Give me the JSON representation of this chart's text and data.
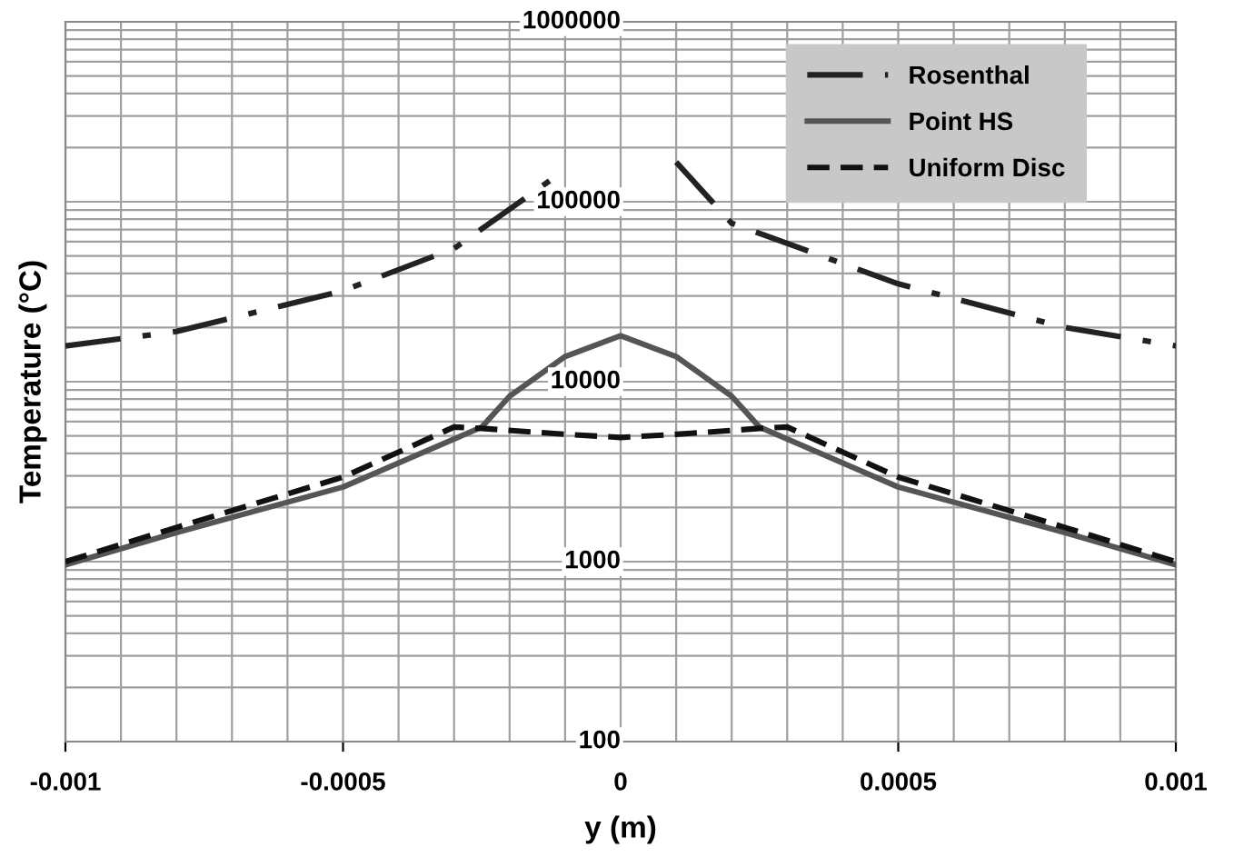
{
  "chart_data": {
    "type": "line",
    "xlabel": "y (m)",
    "ylabel": "Temperature (°C)",
    "log": "y",
    "grid": true,
    "legend": "top right",
    "marker": "none",
    "xlim": [
      -0.001,
      0.001
    ],
    "xticks": [
      -0.001,
      -0.0005,
      0,
      0.0005,
      0.001
    ],
    "ylim": [
      100,
      1000000
    ],
    "yticks": [
      100,
      1000,
      10000,
      100000,
      1000000
    ],
    "series": [
      {
        "name": "Rosenthal",
        "color": "#222222",
        "line_style": "dashdot",
        "x": [
          -0.001,
          -0.0008,
          -0.0005,
          -0.0003,
          -0.000126,
          null,
          0.0001,
          0.0002,
          0.0005,
          0.0008,
          0.001
        ],
        "values": [
          15800,
          19000,
          32000,
          55000,
          132000,
          null,
          166000,
          76000,
          35000,
          20000,
          15800
        ]
      },
      {
        "name": "Point HS",
        "color": "#555555",
        "line_style": "solid",
        "x": [
          -0.001,
          -0.0008,
          -0.0005,
          -0.00025,
          -0.0002,
          -0.0001,
          0,
          0.0001,
          0.0002,
          0.00025,
          0.0005,
          0.0008,
          0.001
        ],
        "values": [
          960,
          1450,
          2600,
          5600,
          8300,
          13800,
          18000,
          13800,
          8300,
          5600,
          2600,
          1450,
          960
        ]
      },
      {
        "name": "Uniform Disc",
        "color": "#111111",
        "line_style": "dashed",
        "x": [
          -0.001,
          -0.0008,
          -0.0005,
          -0.0003,
          -0.00025,
          -0.0001,
          0,
          0.0001,
          0.00025,
          0.0003,
          0.0005,
          0.0008,
          0.001
        ],
        "values": [
          1000,
          1550,
          2950,
          5600,
          5500,
          5100,
          4900,
          5100,
          5500,
          5600,
          2950,
          1550,
          1000
        ]
      }
    ]
  }
}
